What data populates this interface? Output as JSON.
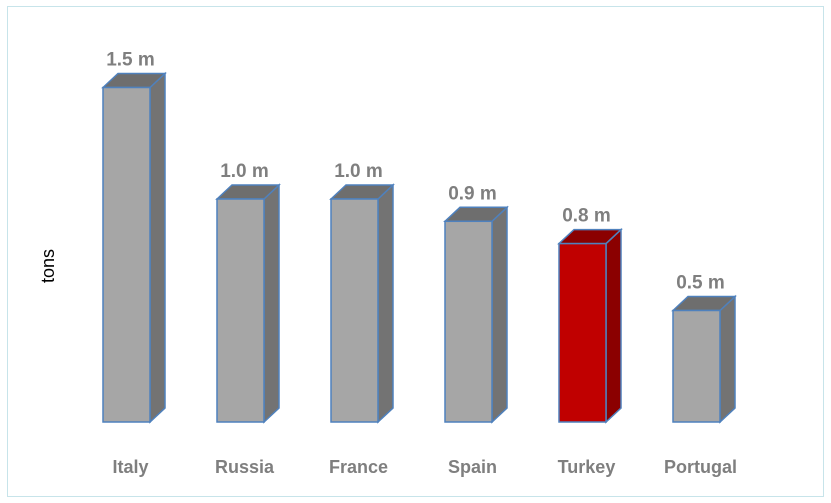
{
  "chart_data": {
    "type": "bar",
    "ylabel": "tons",
    "categories": [
      "Italy",
      "Russia",
      "France",
      "Spain",
      "Turkey",
      "Portugal"
    ],
    "values": [
      1.5,
      1.0,
      1.0,
      0.9,
      0.8,
      0.5
    ],
    "data_labels": [
      "1.5 m",
      "1.0 m",
      "1.0 m",
      "0.9 m",
      "0.8 m",
      "0.5 m"
    ],
    "highlight": "Turkey",
    "colors": {
      "default_fill": "#a6a6a6",
      "default_side": "#737373",
      "default_top": "#6e6e6e",
      "highlight_fill": "#c00000",
      "highlight_side": "#8b0000",
      "highlight_top": "#8b0000",
      "outline": "#4f81bd",
      "label": "#7f7f7f"
    }
  }
}
